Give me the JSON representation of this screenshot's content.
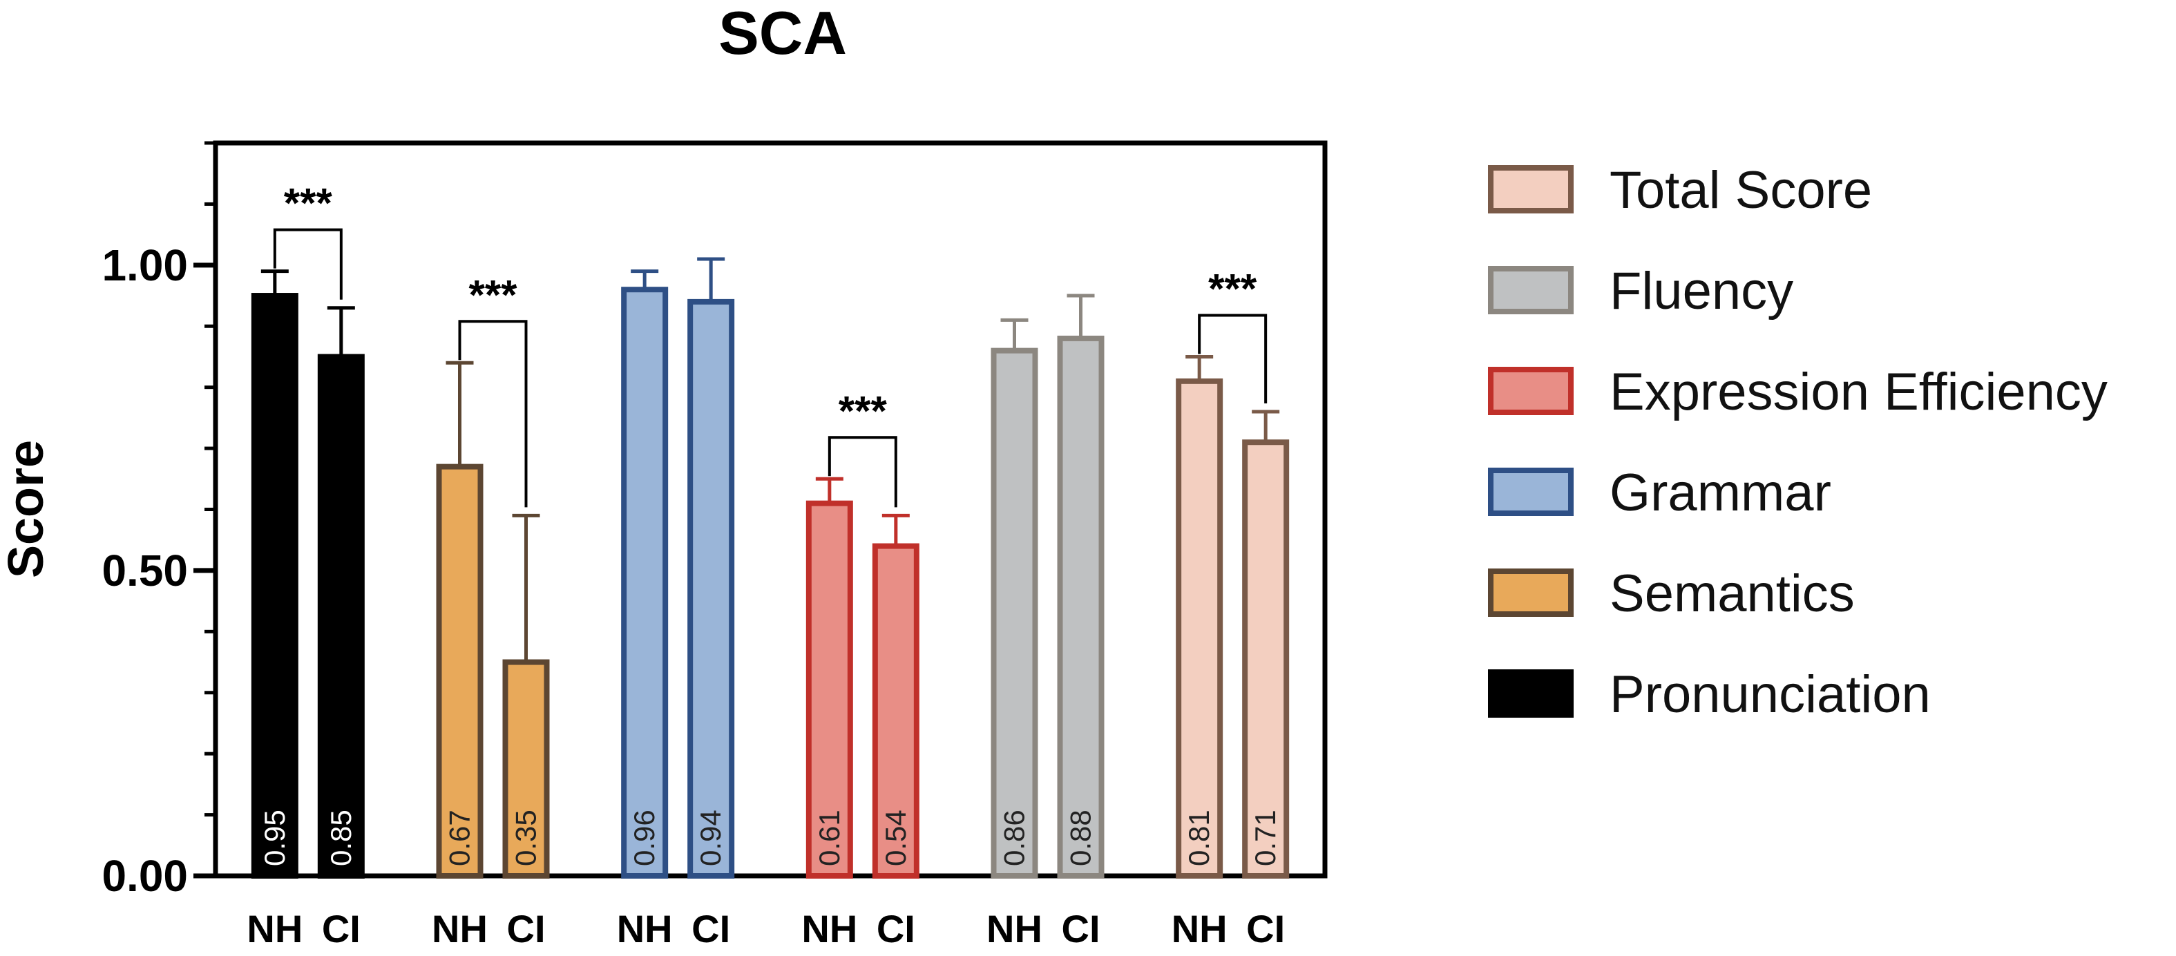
{
  "chart_data": {
    "type": "bar",
    "title": "SCA",
    "ylabel": "Score",
    "xlabel": "",
    "ylim": [
      0,
      1.2
    ],
    "yticks": [
      {
        "value": 0.0,
        "label": "0.00"
      },
      {
        "value": 0.5,
        "label": "0.50"
      },
      {
        "value": 1.0,
        "label": "1.00"
      }
    ],
    "minor_tick_step": 0.1,
    "groups": [
      "NH",
      "CI"
    ],
    "colors": {
      "pronunciation_fill": "#000000",
      "pronunciation_stroke": "#000000",
      "semantics_fill": "#E8A95A",
      "semantics_stroke": "#5C4632",
      "grammar_fill": "#9AB5D8",
      "grammar_stroke": "#2E4F85",
      "expression_fill": "#E88E86",
      "expression_stroke": "#C0302A",
      "fluency_fill": "#BFC1C2",
      "fluency_stroke": "#8C8780",
      "total_fill": "#F3CFC0",
      "total_stroke": "#7A5A48"
    },
    "series": [
      {
        "name": "Pronunciation",
        "fill": "#000000",
        "stroke": "#000000",
        "label_dark": false,
        "values": [
          0.95,
          0.85
        ],
        "value_labels": [
          "0.95",
          "0.85"
        ],
        "errors": [
          0.04,
          0.08
        ],
        "significance": "***"
      },
      {
        "name": "Semantics",
        "fill": "#E8A95A",
        "stroke": "#5C4632",
        "label_dark": true,
        "values": [
          0.67,
          0.35
        ],
        "value_labels": [
          "0.67",
          "0.35"
        ],
        "errors": [
          0.17,
          0.24
        ],
        "significance": "***"
      },
      {
        "name": "Grammar",
        "fill": "#9AB5D8",
        "stroke": "#2E4F85",
        "label_dark": true,
        "values": [
          0.96,
          0.94
        ],
        "value_labels": [
          "0.96",
          "0.94"
        ],
        "errors": [
          0.03,
          0.07
        ],
        "significance": ""
      },
      {
        "name": "Expression Efficiency",
        "fill": "#E88E86",
        "stroke": "#C0302A",
        "label_dark": true,
        "values": [
          0.61,
          0.54
        ],
        "value_labels": [
          "0.61",
          "0.54"
        ],
        "errors": [
          0.04,
          0.05
        ],
        "significance": "***"
      },
      {
        "name": "Fluency",
        "fill": "#BFC1C2",
        "stroke": "#8C8780",
        "label_dark": true,
        "values": [
          0.86,
          0.88
        ],
        "value_labels": [
          "0.86",
          "0.88"
        ],
        "errors": [
          0.05,
          0.07
        ],
        "significance": ""
      },
      {
        "name": "Total Score",
        "fill": "#F3CFC0",
        "stroke": "#7A5A48",
        "label_dark": true,
        "values": [
          0.81,
          0.71
        ],
        "value_labels": [
          "0.81",
          "0.71"
        ],
        "errors": [
          0.04,
          0.05
        ],
        "significance": "***"
      }
    ],
    "legend": {
      "placement": "right",
      "order": [
        "Total Score",
        "Fluency",
        "Expression Efficiency",
        "Grammar",
        "Semantics",
        "Pronunciation"
      ]
    }
  }
}
